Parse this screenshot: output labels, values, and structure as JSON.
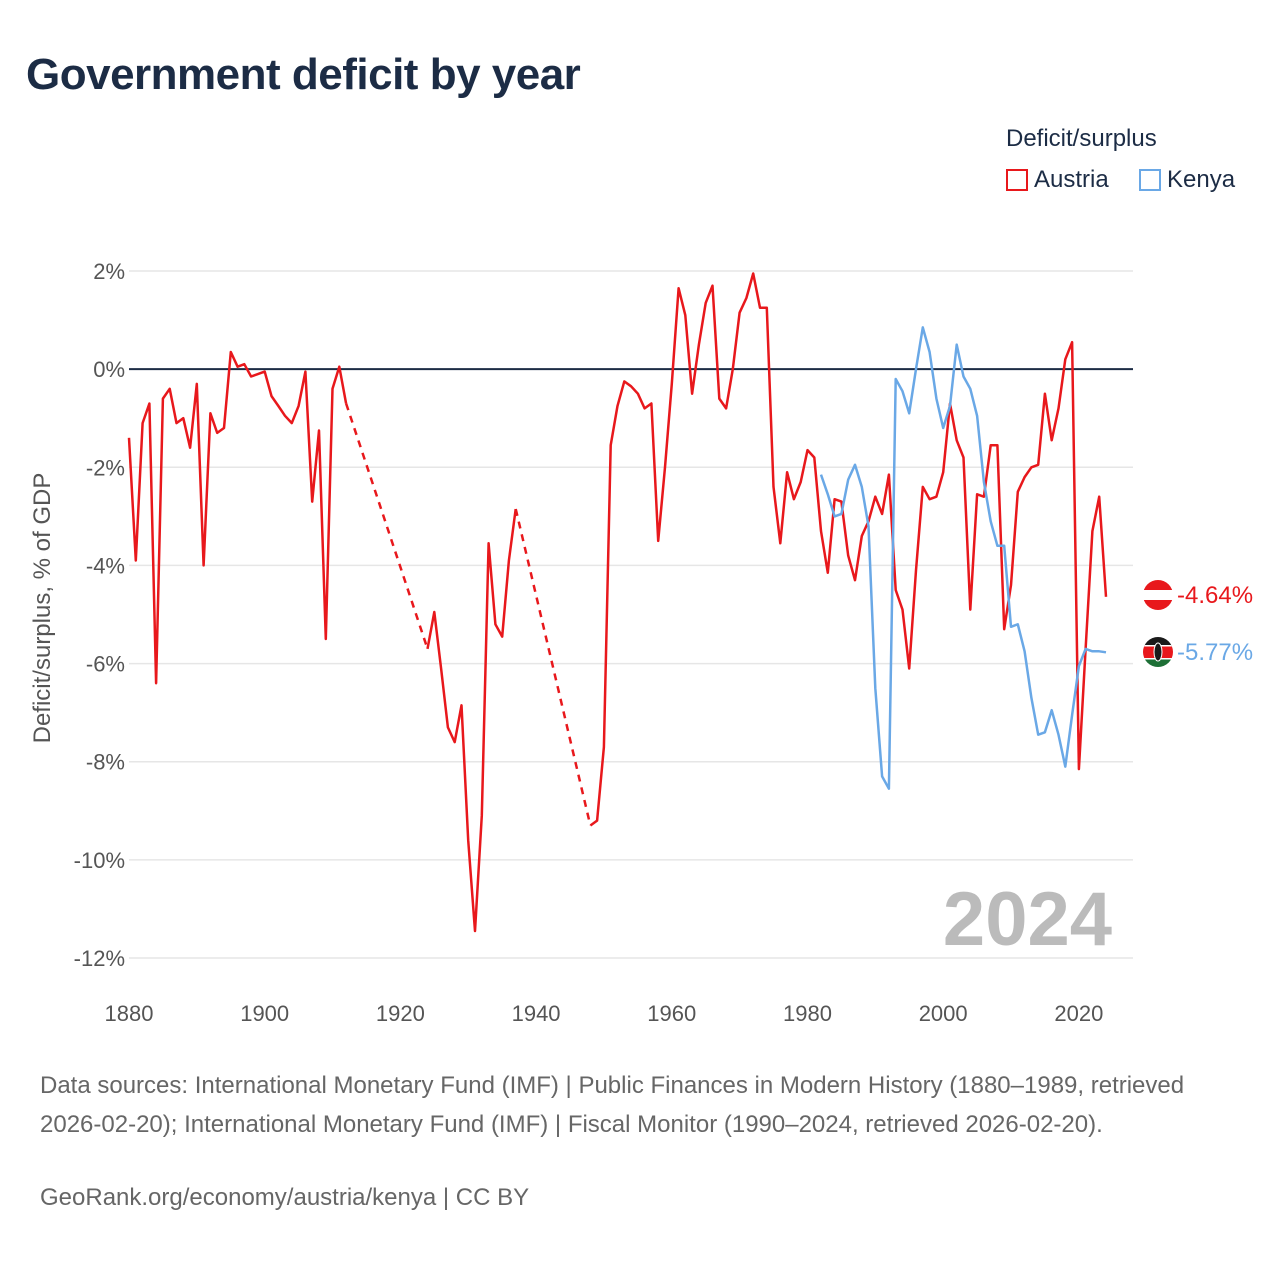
{
  "title": "Government deficit by year",
  "legend": {
    "title": "Deficit/surplus",
    "items": [
      {
        "label": "Austria",
        "color": "#e8181c"
      },
      {
        "label": "Kenya",
        "color": "#6aa8e6"
      }
    ]
  },
  "source_text": "Data sources: International Monetary Fund (IMF) | Public Finances in Modern History (1880–1989, retrieved 2026-02-20); International Monetary Fund (IMF) | Fiscal Monitor (1990–2024, retrieved 2026-02-20).",
  "credit_text": "GeoRank.org/economy/austria/kenya | CC BY",
  "chart_data": {
    "type": "line",
    "title": "Government deficit by year",
    "xlabel": "",
    "ylabel": "Deficit/surplus, % of GDP",
    "xlim": [
      1880,
      2024
    ],
    "ylim": [
      -12,
      2
    ],
    "x_ticks": [
      1880,
      1900,
      1920,
      1940,
      1960,
      1980,
      2000,
      2020
    ],
    "y_ticks": [
      2,
      0,
      -2,
      -4,
      -6,
      -8,
      -10,
      -12
    ],
    "y_tick_labels": [
      "2%",
      "0%",
      "-2%",
      "-4%",
      "-6%",
      "-8%",
      "-10%",
      "-12%"
    ],
    "grid": true,
    "zero_line": true,
    "year_annotation": "2024",
    "series": [
      {
        "name": "Austria",
        "color": "#e8181c",
        "end_label": "-4.64%",
        "points": [
          [
            1880,
            -1.4
          ],
          [
            1881,
            -3.9
          ],
          [
            1882,
            -1.1
          ],
          [
            1883,
            -0.7
          ],
          [
            1884,
            -6.4
          ],
          [
            1885,
            -0.6
          ],
          [
            1886,
            -0.4
          ],
          [
            1887,
            -1.1
          ],
          [
            1888,
            -1.0
          ],
          [
            1889,
            -1.6
          ],
          [
            1890,
            -0.3
          ],
          [
            1891,
            -4.0
          ],
          [
            1892,
            -0.9
          ],
          [
            1893,
            -1.3
          ],
          [
            1894,
            -1.2
          ],
          [
            1895,
            0.35
          ],
          [
            1896,
            0.05
          ],
          [
            1897,
            0.1
          ],
          [
            1898,
            -0.15
          ],
          [
            1899,
            -0.1
          ],
          [
            1900,
            -0.05
          ],
          [
            1901,
            -0.55
          ],
          [
            1902,
            -0.75
          ],
          [
            1903,
            -0.95
          ],
          [
            1904,
            -1.1
          ],
          [
            1905,
            -0.75
          ],
          [
            1906,
            -0.05
          ],
          [
            1907,
            -2.7
          ],
          [
            1908,
            -1.25
          ],
          [
            1909,
            -5.5
          ],
          [
            1910,
            -0.4
          ],
          [
            1911,
            0.05
          ],
          [
            1912,
            -0.7
          ],
          [
            1924,
            -5.7
          ],
          [
            1925,
            -4.95
          ],
          [
            1926,
            -6.1
          ],
          [
            1927,
            -7.3
          ],
          [
            1928,
            -7.6
          ],
          [
            1929,
            -6.85
          ],
          [
            1930,
            -9.6
          ],
          [
            1931,
            -11.45
          ],
          [
            1932,
            -9.1
          ],
          [
            1933,
            -3.55
          ],
          [
            1934,
            -5.2
          ],
          [
            1935,
            -5.45
          ],
          [
            1936,
            -3.9
          ],
          [
            1937,
            -2.85
          ],
          [
            1948,
            -9.3
          ],
          [
            1949,
            -9.2
          ],
          [
            1950,
            -7.7
          ],
          [
            1951,
            -1.55
          ],
          [
            1952,
            -0.75
          ],
          [
            1953,
            -0.25
          ],
          [
            1954,
            -0.35
          ],
          [
            1955,
            -0.5
          ],
          [
            1956,
            -0.8
          ],
          [
            1957,
            -0.7
          ],
          [
            1958,
            -3.5
          ],
          [
            1959,
            -2.0
          ],
          [
            1960,
            -0.3
          ],
          [
            1961,
            1.65
          ],
          [
            1962,
            1.1
          ],
          [
            1963,
            -0.5
          ],
          [
            1964,
            0.5
          ],
          [
            1965,
            1.35
          ],
          [
            1966,
            1.7
          ],
          [
            1967,
            -0.6
          ],
          [
            1968,
            -0.8
          ],
          [
            1969,
            0.0
          ],
          [
            1970,
            1.15
          ],
          [
            1971,
            1.45
          ],
          [
            1972,
            1.95
          ],
          [
            1973,
            1.25
          ],
          [
            1974,
            1.25
          ],
          [
            1975,
            -2.4
          ],
          [
            1976,
            -3.55
          ],
          [
            1977,
            -2.1
          ],
          [
            1978,
            -2.65
          ],
          [
            1979,
            -2.3
          ],
          [
            1980,
            -1.65
          ],
          [
            1981,
            -1.8
          ],
          [
            1982,
            -3.3
          ],
          [
            1983,
            -4.15
          ],
          [
            1984,
            -2.65
          ],
          [
            1985,
            -2.7
          ],
          [
            1986,
            -3.8
          ],
          [
            1987,
            -4.3
          ],
          [
            1988,
            -3.4
          ],
          [
            1989,
            -3.1
          ],
          [
            1990,
            -2.6
          ],
          [
            1991,
            -2.95
          ],
          [
            1992,
            -2.15
          ],
          [
            1993,
            -4.5
          ],
          [
            1994,
            -4.9
          ],
          [
            1995,
            -6.1
          ],
          [
            1996,
            -4.1
          ],
          [
            1997,
            -2.4
          ],
          [
            1998,
            -2.65
          ],
          [
            1999,
            -2.6
          ],
          [
            2000,
            -2.1
          ],
          [
            2001,
            -0.7
          ],
          [
            2002,
            -1.45
          ],
          [
            2003,
            -1.8
          ],
          [
            2004,
            -4.9
          ],
          [
            2005,
            -2.55
          ],
          [
            2006,
            -2.6
          ],
          [
            2007,
            -1.55
          ],
          [
            2008,
            -1.55
          ],
          [
            2009,
            -5.3
          ],
          [
            2010,
            -4.4
          ],
          [
            2011,
            -2.5
          ],
          [
            2012,
            -2.2
          ],
          [
            2013,
            -2.0
          ],
          [
            2014,
            -1.95
          ],
          [
            2015,
            -0.5
          ],
          [
            2016,
            -1.45
          ],
          [
            2017,
            -0.8
          ],
          [
            2018,
            0.2
          ],
          [
            2019,
            0.55
          ],
          [
            2020,
            -8.15
          ],
          [
            2021,
            -5.7
          ],
          [
            2022,
            -3.3
          ],
          [
            2023,
            -2.6
          ],
          [
            2024,
            -4.64
          ]
        ],
        "dashed_gaps": [
          [
            1912,
            1924
          ],
          [
            1937,
            1948
          ]
        ]
      },
      {
        "name": "Kenya",
        "color": "#6aa8e6",
        "end_label": "-5.77%",
        "points": [
          [
            1982,
            -2.15
          ],
          [
            1983,
            -2.55
          ],
          [
            1984,
            -3.0
          ],
          [
            1985,
            -2.95
          ],
          [
            1986,
            -2.25
          ],
          [
            1987,
            -1.95
          ],
          [
            1988,
            -2.4
          ],
          [
            1989,
            -3.2
          ],
          [
            1990,
            -6.5
          ],
          [
            1991,
            -8.3
          ],
          [
            1992,
            -8.55
          ],
          [
            1993,
            -0.2
          ],
          [
            1994,
            -0.45
          ],
          [
            1995,
            -0.9
          ],
          [
            1996,
            0.0
          ],
          [
            1997,
            0.85
          ],
          [
            1998,
            0.35
          ],
          [
            1999,
            -0.6
          ],
          [
            2000,
            -1.2
          ],
          [
            2001,
            -0.75
          ],
          [
            2002,
            0.5
          ],
          [
            2003,
            -0.15
          ],
          [
            2004,
            -0.4
          ],
          [
            2005,
            -0.95
          ],
          [
            2006,
            -2.3
          ],
          [
            2007,
            -3.1
          ],
          [
            2008,
            -3.6
          ],
          [
            2009,
            -3.6
          ],
          [
            2010,
            -5.25
          ],
          [
            2011,
            -5.2
          ],
          [
            2012,
            -5.75
          ],
          [
            2013,
            -6.7
          ],
          [
            2014,
            -7.45
          ],
          [
            2015,
            -7.4
          ],
          [
            2016,
            -6.95
          ],
          [
            2017,
            -7.45
          ],
          [
            2018,
            -8.1
          ],
          [
            2019,
            -7.05
          ],
          [
            2020,
            -6.05
          ],
          [
            2021,
            -5.7
          ],
          [
            2022,
            -5.75
          ],
          [
            2023,
            -5.75
          ],
          [
            2024,
            -5.77
          ]
        ]
      }
    ]
  }
}
